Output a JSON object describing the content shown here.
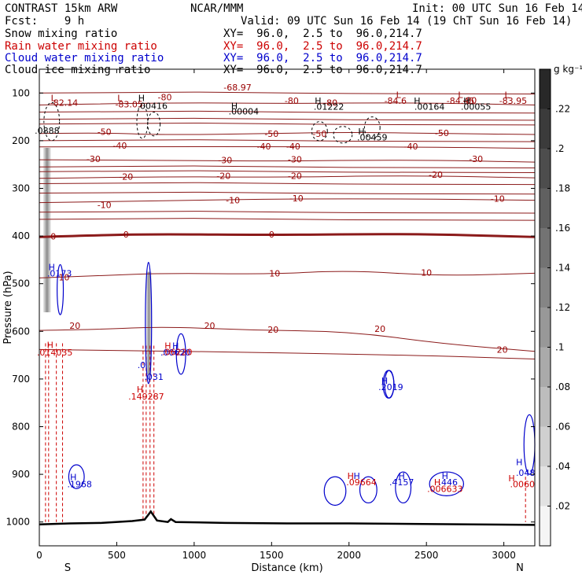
{
  "header": {
    "left_line1": "CONTRAST 15km ARW",
    "center_line1": "NCAR/MMM",
    "right_line1": "Init: 00 UTC Sun 16 Feb 14",
    "left_line2": "Fcst:    9 h",
    "right_line2": "Valid: 09 UTC Sun 16 Feb 14 (19 ChT Sun 16 Feb 14)",
    "fields": [
      {
        "name": "Snow mixing ratio",
        "xy": "XY=  96.0,  2.5 to  96.0,214.7",
        "color": "#000000"
      },
      {
        "name": "Rain water mixing ratio",
        "xy": "XY=  96.0,  2.5 to  96.0,214.7",
        "color": "#cc0000"
      },
      {
        "name": "Cloud water mixing ratio",
        "xy": "XY=  96.0,  2.5 to  96.0,214.7",
        "color": "#0000cc"
      },
      {
        "name": "Cloud ice mixing ratio",
        "xy": "XY=  96.0,  2.5 to  96.0,214.7",
        "color": "#000000"
      }
    ]
  },
  "chart_data": {
    "type": "heatmap",
    "xlabel": "Distance (km)",
    "ylabel": "Pressure (hPa)",
    "xlim": [
      0,
      3200
    ],
    "ylim": [
      1050,
      50
    ],
    "x_ticks": [
      0,
      500,
      1000,
      1500,
      2000,
      2500,
      3000
    ],
    "y_ticks": [
      100,
      200,
      300,
      400,
      500,
      600,
      700,
      800,
      900,
      1000
    ],
    "x_end_labels": {
      "left": "S",
      "right": "N"
    },
    "colorbar": {
      "unit": "g kg⁻¹",
      "ticks": [
        ".02",
        ".04",
        ".06",
        ".08",
        ".1",
        ".12",
        ".14",
        ".16",
        ".18",
        ".2",
        ".22"
      ],
      "tick_values": [
        0.02,
        0.04,
        0.06,
        0.08,
        0.1,
        0.12,
        0.14,
        0.16,
        0.18,
        0.2,
        0.22
      ],
      "max": 0.24
    },
    "temperature_contours": [
      {
        "level": -60,
        "pts": [
          [
            0,
            125
          ],
          [
            800,
            120
          ],
          [
            1600,
            122
          ],
          [
            2400,
            120
          ],
          [
            3200,
            125
          ]
        ]
      },
      {
        "level": -50,
        "pts": [
          [
            0,
            185
          ],
          [
            400,
            183
          ],
          [
            800,
            188
          ],
          [
            1500,
            185
          ],
          [
            2000,
            182
          ],
          [
            2600,
            185
          ],
          [
            3200,
            187
          ]
        ]
      },
      {
        "level": -40,
        "pts": [
          [
            0,
            213
          ],
          [
            800,
            212
          ],
          [
            1500,
            213
          ],
          [
            2400,
            213
          ],
          [
            3200,
            216
          ]
        ]
      },
      {
        "level": -30,
        "pts": [
          [
            0,
            240
          ],
          [
            800,
            241
          ],
          [
            1500,
            243
          ],
          [
            2400,
            240
          ],
          [
            3200,
            245
          ]
        ]
      },
      {
        "level": -20,
        "pts": [
          [
            0,
            279
          ],
          [
            800,
            275
          ],
          [
            1500,
            277
          ],
          [
            2400,
            273
          ],
          [
            3200,
            278
          ]
        ]
      },
      {
        "level": -10,
        "pts": [
          [
            0,
            330
          ],
          [
            800,
            326
          ],
          [
            1600,
            322
          ],
          [
            2400,
            322
          ],
          [
            3200,
            325
          ]
        ]
      },
      {
        "level": 0,
        "pts": [
          [
            0,
            402
          ],
          [
            400,
            398
          ],
          [
            800,
            396
          ],
          [
            1500,
            398
          ],
          [
            2400,
            395
          ],
          [
            3200,
            402
          ]
        ],
        "bold": true
      },
      {
        "level": 10,
        "pts": [
          [
            0,
            488
          ],
          [
            400,
            483
          ],
          [
            800,
            478
          ],
          [
            1500,
            480
          ],
          [
            2000,
            472
          ],
          [
            2600,
            484
          ],
          [
            3200,
            478
          ]
        ]
      },
      {
        "level": 20,
        "pts": [
          [
            0,
            598
          ],
          [
            400,
            596
          ],
          [
            800,
            590
          ],
          [
            1400,
            598
          ],
          [
            2000,
            600
          ],
          [
            2600,
            626
          ],
          [
            3200,
            642
          ]
        ]
      },
      {
        "level": 30,
        "pts": [
          [
            0,
            638
          ],
          [
            800,
            641
          ],
          [
            1500,
            645
          ],
          [
            2400,
            650
          ],
          [
            3200,
            658
          ]
        ]
      }
    ],
    "labels": [
      {
        "text": "-68.97",
        "x": 1280,
        "p": 90,
        "color": "#990000"
      },
      {
        "text": "-80",
        "x": 810,
        "p": 110,
        "color": "#990000"
      },
      {
        "text": "-80",
        "x": 1630,
        "p": 118,
        "color": "#990000"
      },
      {
        "text": "-80",
        "x": 1880,
        "p": 122,
        "color": "#990000"
      },
      {
        "text": "-80",
        "x": 2780,
        "p": 117,
        "color": "#990000"
      },
      {
        "text": "L",
        "x": 90,
        "p": 112,
        "color": "#990000"
      },
      {
        "text": "-82.14",
        "x": 160,
        "p": 122,
        "color": "#990000"
      },
      {
        "text": "L",
        "x": 520,
        "p": 112,
        "color": "#990000"
      },
      {
        "text": "-83.05",
        "x": 580,
        "p": 125,
        "color": "#990000"
      },
      {
        "text": "L",
        "x": 2320,
        "p": 105,
        "color": "#990000"
      },
      {
        "text": "-84.6",
        "x": 2300,
        "p": 118,
        "color": "#990000"
      },
      {
        "text": "L",
        "x": 2720,
        "p": 105,
        "color": "#990000"
      },
      {
        "text": "-84.45",
        "x": 2720,
        "p": 118,
        "color": "#990000"
      },
      {
        "text": "L",
        "x": 3020,
        "p": 105,
        "color": "#990000"
      },
      {
        "text": "-83.95",
        "x": 3060,
        "p": 118,
        "color": "#990000"
      },
      {
        "text": "-50",
        "x": 420,
        "p": 183,
        "color": "#990000"
      },
      {
        "text": "-50",
        "x": 1500,
        "p": 187,
        "color": "#990000"
      },
      {
        "text": "-50",
        "x": 1810,
        "p": 187,
        "color": "#990000"
      },
      {
        "text": "-50",
        "x": 2600,
        "p": 185,
        "color": "#990000"
      },
      {
        "text": "-40",
        "x": 520,
        "p": 212,
        "color": "#990000"
      },
      {
        "text": "-40",
        "x": 1450,
        "p": 213,
        "color": "#990000"
      },
      {
        "text": "-40",
        "x": 1640,
        "p": 213,
        "color": "#990000"
      },
      {
        "text": "-40",
        "x": 2400,
        "p": 213,
        "color": "#990000"
      },
      {
        "text": "-30",
        "x": 350,
        "p": 240,
        "color": "#990000"
      },
      {
        "text": "-30",
        "x": 1200,
        "p": 242,
        "color": "#990000"
      },
      {
        "text": "-30",
        "x": 1650,
        "p": 241,
        "color": "#990000"
      },
      {
        "text": "-30",
        "x": 2820,
        "p": 240,
        "color": "#990000"
      },
      {
        "text": "-20",
        "x": 560,
        "p": 277,
        "color": "#990000"
      },
      {
        "text": "-20",
        "x": 1190,
        "p": 275,
        "color": "#990000"
      },
      {
        "text": "-20",
        "x": 1650,
        "p": 275,
        "color": "#990000"
      },
      {
        "text": "-20",
        "x": 2560,
        "p": 273,
        "color": "#990000"
      },
      {
        "text": "-10",
        "x": 1250,
        "p": 326,
        "color": "#990000"
      },
      {
        "text": "-10",
        "x": 1660,
        "p": 322,
        "color": "#990000"
      },
      {
        "text": "-10",
        "x": 2960,
        "p": 323,
        "color": "#990000"
      },
      {
        "text": "-10",
        "x": 420,
        "p": 336,
        "color": "#990000"
      },
      {
        "text": "0",
        "x": 90,
        "p": 402,
        "color": "#990000"
      },
      {
        "text": "0",
        "x": 560,
        "p": 398,
        "color": "#990000"
      },
      {
        "text": "0",
        "x": 1500,
        "p": 398,
        "color": "#990000"
      },
      {
        "text": "10",
        "x": 160,
        "p": 488,
        "color": "#990000"
      },
      {
        "text": "10",
        "x": 1520,
        "p": 480,
        "color": "#990000"
      },
      {
        "text": "10",
        "x": 2500,
        "p": 478,
        "color": "#990000"
      },
      {
        "text": "20",
        "x": 2200,
        "p": 596,
        "color": "#990000"
      },
      {
        "text": "20",
        "x": 1510,
        "p": 598,
        "color": "#990000"
      },
      {
        "text": "20",
        "x": 1100,
        "p": 590,
        "color": "#990000"
      },
      {
        "text": "20",
        "x": 230,
        "p": 590,
        "color": "#990000"
      },
      {
        "text": "20",
        "x": 2990,
        "p": 640,
        "color": "#990000"
      },
      {
        "text": "H",
        "x": 660,
        "p": 112,
        "color": "#000000"
      },
      {
        "text": ".00416",
        "x": 730,
        "p": 128,
        "color": "#000000"
      },
      {
        "text": "H",
        "x": 1260,
        "p": 128,
        "color": "#000000"
      },
      {
        "text": ".00004",
        "x": 1320,
        "p": 140,
        "color": "#000000"
      },
      {
        "text": "H",
        "x": 1800,
        "p": 118,
        "color": "#000000"
      },
      {
        "text": ".01222",
        "x": 1870,
        "p": 130,
        "color": "#000000"
      },
      {
        "text": "H",
        "x": 2440,
        "p": 118,
        "color": "#000000"
      },
      {
        "text": ".00164",
        "x": 2520,
        "p": 130,
        "color": "#000000"
      },
      {
        "text": "H",
        "x": 2760,
        "p": 118,
        "color": "#000000"
      },
      {
        "text": ".00055",
        "x": 2820,
        "p": 130,
        "color": "#000000"
      },
      {
        "text": "H",
        "x": 2080,
        "p": 182,
        "color": "#000000"
      },
      {
        "text": ".00459",
        "x": 2150,
        "p": 194,
        "color": "#000000"
      },
      {
        "text": ".0888",
        "x": 50,
        "p": 180,
        "color": "#000000"
      },
      {
        "text": "H",
        "x": 80,
        "p": 467,
        "color": "#0000cc"
      },
      {
        "text": ".0173",
        "x": 130,
        "p": 480,
        "color": "#0000cc"
      },
      {
        "text": "H",
        "x": 880,
        "p": 632,
        "color": "#0000cc"
      },
      {
        "text": ".00620",
        "x": 880,
        "p": 646,
        "color": "#0000cc"
      },
      {
        "text": ".031",
        "x": 740,
        "p": 697,
        "color": "#0000cc"
      },
      {
        "text": ".0",
        "x": 660,
        "p": 672,
        "color": "#0000cc"
      },
      {
        "text": "H",
        "x": 2230,
        "p": 705,
        "color": "#0000cc"
      },
      {
        "text": ".2019",
        "x": 2270,
        "p": 718,
        "color": "#0000cc"
      },
      {
        "text": "H",
        "x": 220,
        "p": 907,
        "color": "#0000cc"
      },
      {
        "text": ".1968",
        "x": 260,
        "p": 922,
        "color": "#0000cc"
      },
      {
        "text": "H",
        "x": 2050,
        "p": 905,
        "color": "#0000cc"
      },
      {
        "text": "H",
        "x": 2340,
        "p": 905,
        "color": "#0000cc"
      },
      {
        "text": ".4157",
        "x": 2340,
        "p": 918,
        "color": "#0000cc"
      },
      {
        "text": "H",
        "x": 2620,
        "p": 905,
        "color": "#0000cc"
      },
      {
        "text": ".446",
        "x": 2640,
        "p": 918,
        "color": "#0000cc"
      },
      {
        "text": ".048",
        "x": 3140,
        "p": 898,
        "color": "#0000cc"
      },
      {
        "text": "H",
        "x": 3100,
        "p": 876,
        "color": "#0000cc"
      },
      {
        "text": "H",
        "x": 70,
        "p": 630,
        "color": "#cc0000"
      },
      {
        "text": ".014035",
        "x": 100,
        "p": 646,
        "color": "#cc0000"
      },
      {
        "text": "H",
        "x": 650,
        "p": 723,
        "color": "#cc0000"
      },
      {
        "text": ".149287",
        "x": 690,
        "p": 738,
        "color": "#cc0000"
      },
      {
        "text": "H",
        "x": 830,
        "p": 632,
        "color": "#cc0000"
      },
      {
        "text": ".06220",
        "x": 890,
        "p": 645,
        "color": "#cc0000"
      },
      {
        "text": "H",
        "x": 2010,
        "p": 905,
        "color": "#cc0000"
      },
      {
        "text": ".09664",
        "x": 2080,
        "p": 918,
        "color": "#cc0000"
      },
      {
        "text": "H",
        "x": 2570,
        "p": 918,
        "color": "#cc0000"
      },
      {
        "text": ".006633",
        "x": 2620,
        "p": 932,
        "color": "#cc0000"
      },
      {
        "text": "H",
        "x": 3050,
        "p": 910,
        "color": "#cc0000"
      },
      {
        "text": ".0060",
        "x": 3120,
        "p": 922,
        "color": "#cc0000"
      }
    ],
    "cloud_water_contours": [
      {
        "x": [
          115,
          155
        ],
        "p": [
          460,
          565
        ]
      },
      {
        "x": [
          685,
          725
        ],
        "p": [
          455,
          710
        ]
      },
      {
        "x": [
          885,
          945
        ],
        "p": [
          605,
          690
        ]
      },
      {
        "x": [
          2220,
          2290
        ],
        "p": [
          682,
          740
        ]
      },
      {
        "x": [
          2230,
          2290
        ],
        "p": [
          682,
          740
        ]
      },
      {
        "x": [
          190,
          290
        ],
        "p": [
          880,
          930
        ]
      },
      {
        "x": [
          1840,
          1980
        ],
        "p": [
          905,
          965
        ]
      },
      {
        "x": [
          2070,
          2180
        ],
        "p": [
          905,
          960
        ]
      },
      {
        "x": [
          2300,
          2400
        ],
        "p": [
          895,
          960
        ]
      },
      {
        "x": [
          2520,
          2740
        ],
        "p": [
          895,
          945
        ]
      },
      {
        "x": [
          3130,
          3200
        ],
        "p": [
          775,
          900
        ]
      }
    ],
    "rain_columns_x": [
      40,
      60,
      110,
      150,
      670,
      690,
      715,
      740,
      3140,
      3200
    ],
    "snow_columns": [
      {
        "x": [
          25,
          75
        ],
        "p": [
          215,
          560
        ]
      },
      {
        "x": [
          690,
          725
        ],
        "p": [
          475,
          690
        ]
      }
    ],
    "terrain": [
      [
        0,
        1005
      ],
      [
        200,
        1003
      ],
      [
        400,
        1002
      ],
      [
        600,
        998
      ],
      [
        680,
        995
      ],
      [
        720,
        978
      ],
      [
        760,
        997
      ],
      [
        830,
        1000
      ],
      [
        850,
        994
      ],
      [
        880,
        1000
      ],
      [
        1200,
        1002
      ],
      [
        1600,
        1003
      ],
      [
        2000,
        1003
      ],
      [
        2400,
        1004
      ],
      [
        2800,
        1005
      ],
      [
        3200,
        1006
      ]
    ]
  }
}
